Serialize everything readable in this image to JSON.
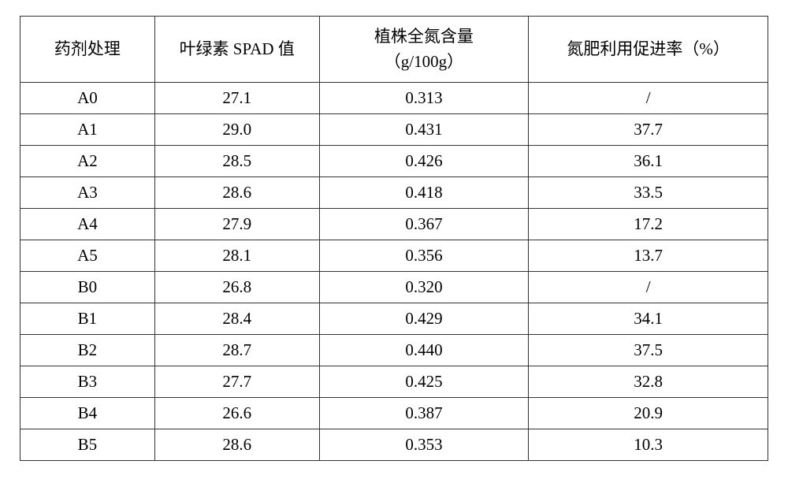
{
  "table": {
    "type": "table",
    "background_color": "#ffffff",
    "border_color": "#333333",
    "text_color": "#000000",
    "font_family": "SimSun",
    "header_fontsize": 21,
    "cell_fontsize": 21,
    "border_width": 1.5,
    "header_row_height": 84,
    "data_row_height": 40,
    "columns": [
      {
        "label": "药剂处理",
        "width_percent": 18,
        "align": "center"
      },
      {
        "label": "叶绿素 SPAD 值",
        "width_percent": 22,
        "align": "center"
      },
      {
        "label_line1": "植株全氮含量",
        "label_line2": "（g/100g）",
        "width_percent": 28,
        "align": "center",
        "multiline": true
      },
      {
        "label": "氮肥利用促进率（%）",
        "width_percent": 32,
        "align": "center"
      }
    ],
    "rows": [
      {
        "treatment": "A0",
        "spad": "27.1",
        "nitrogen": "0.313",
        "promotion": "/"
      },
      {
        "treatment": "A1",
        "spad": "29.0",
        "nitrogen": "0.431",
        "promotion": "37.7"
      },
      {
        "treatment": "A2",
        "spad": "28.5",
        "nitrogen": "0.426",
        "promotion": "36.1"
      },
      {
        "treatment": "A3",
        "spad": "28.6",
        "nitrogen": "0.418",
        "promotion": "33.5"
      },
      {
        "treatment": "A4",
        "spad": "27.9",
        "nitrogen": "0.367",
        "promotion": "17.2"
      },
      {
        "treatment": "A5",
        "spad": "28.1",
        "nitrogen": "0.356",
        "promotion": "13.7"
      },
      {
        "treatment": "B0",
        "spad": "26.8",
        "nitrogen": "0.320",
        "promotion": "/"
      },
      {
        "treatment": "B1",
        "spad": "28.4",
        "nitrogen": "0.429",
        "promotion": "34.1"
      },
      {
        "treatment": "B2",
        "spad": "28.7",
        "nitrogen": "0.440",
        "promotion": "37.5"
      },
      {
        "treatment": "B3",
        "spad": "27.7",
        "nitrogen": "0.425",
        "promotion": "32.8"
      },
      {
        "treatment": "B4",
        "spad": "26.6",
        "nitrogen": "0.387",
        "promotion": "20.9"
      },
      {
        "treatment": "B5",
        "spad": "28.6",
        "nitrogen": "0.353",
        "promotion": "10.3"
      }
    ]
  }
}
